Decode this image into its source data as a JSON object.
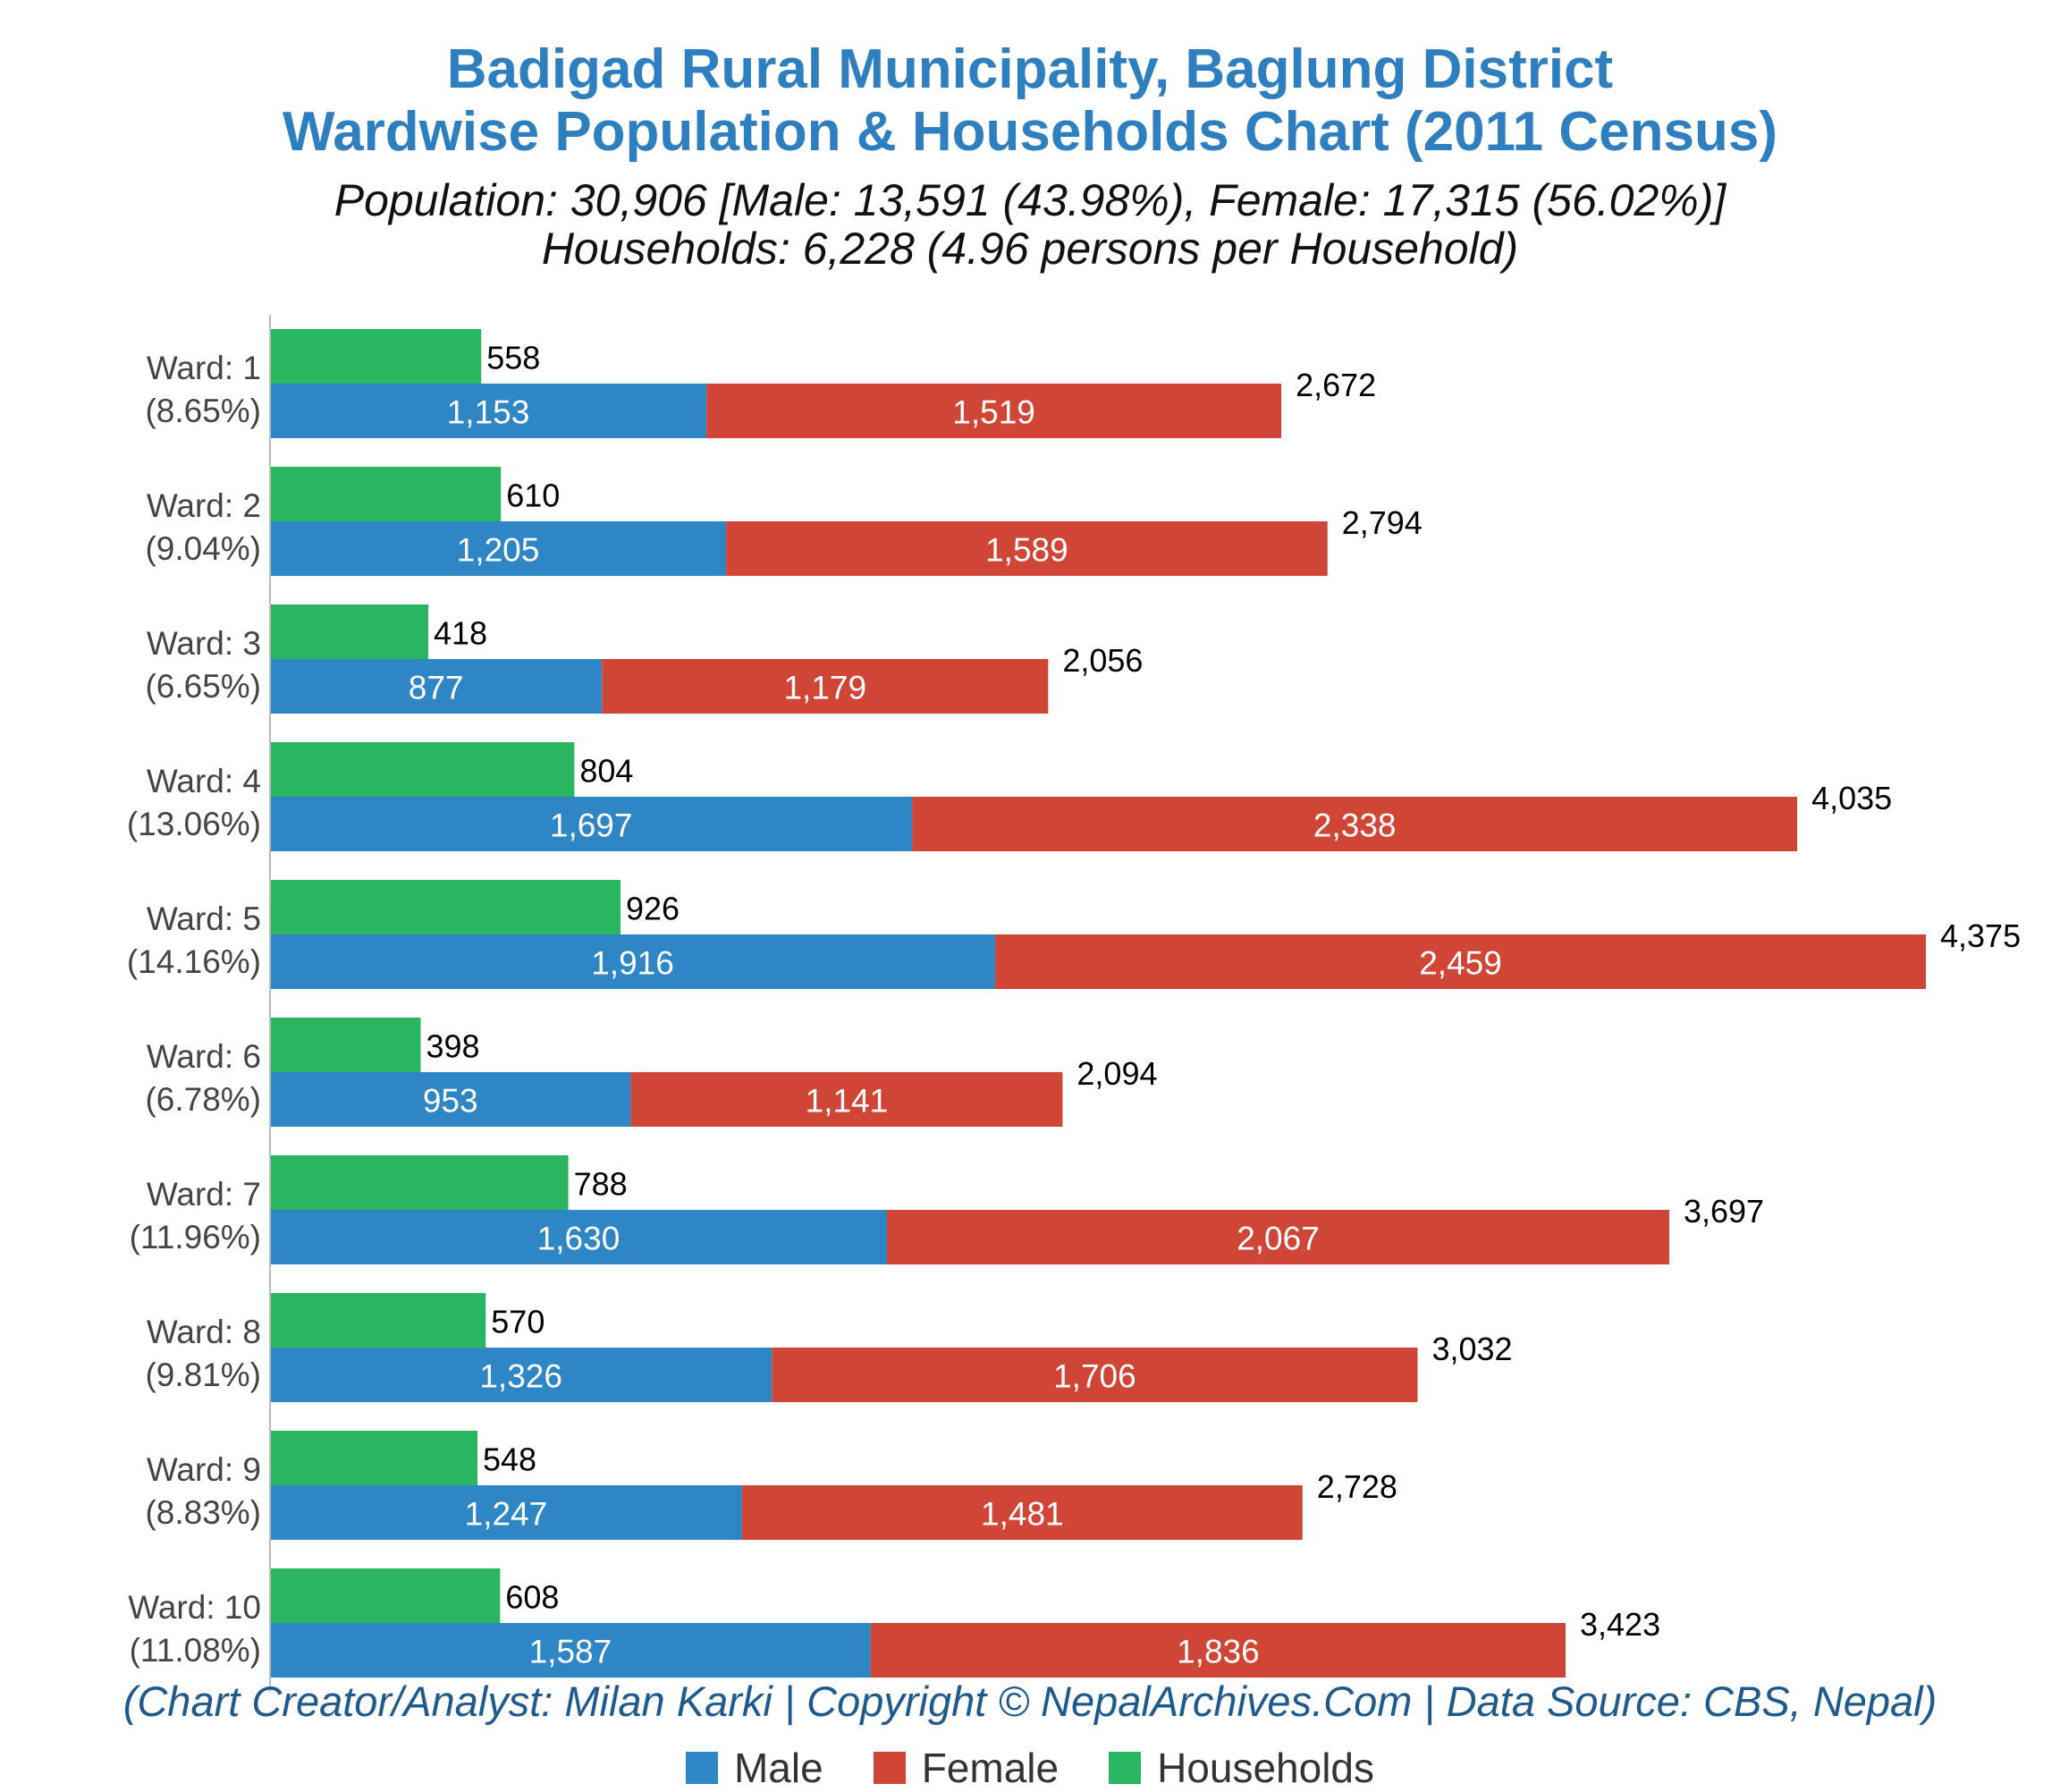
{
  "title_line1": "Badigad Rural Municipality, Baglung District",
  "title_line2": "Wardwise Population & Households Chart (2011 Census)",
  "subtitle_line1": "Population: 30,906 [Male: 13,591 (43.98%), Female: 17,315 (56.02%)]",
  "subtitle_line2": "Households: 6,228 (4.96 persons per Household)",
  "credit": "(Chart Creator/Analyst: Milan Karki | Copyright © NepalArchives.Com | Data Source: CBS, Nepal)",
  "legend": {
    "male": "Male",
    "female": "Female",
    "households": "Households"
  },
  "colors": {
    "male": "#2e86c4",
    "female": "#cf4636",
    "households": "#2ab561",
    "title": "#2e7fbf",
    "credit": "#1f5a8c"
  },
  "chart_data": {
    "type": "bar",
    "orientation": "horizontal",
    "stacked_series": [
      "Male",
      "Female"
    ],
    "categories": [
      "Ward: 1",
      "Ward: 2",
      "Ward: 3",
      "Ward: 4",
      "Ward: 5",
      "Ward: 6",
      "Ward: 7",
      "Ward: 8",
      "Ward: 9",
      "Ward: 10"
    ],
    "category_percent": [
      "(8.65%)",
      "(9.04%)",
      "(6.65%)",
      "(13.06%)",
      "(14.16%)",
      "(6.78%)",
      "(11.96%)",
      "(9.81%)",
      "(8.83%)",
      "(11.08%)"
    ],
    "series": [
      {
        "name": "Male",
        "values": [
          1153,
          1205,
          877,
          1697,
          1916,
          953,
          1630,
          1326,
          1247,
          1587
        ]
      },
      {
        "name": "Female",
        "values": [
          1519,
          1589,
          1179,
          2338,
          2459,
          1141,
          2067,
          1706,
          1481,
          1836
        ]
      },
      {
        "name": "Households",
        "values": [
          558,
          610,
          418,
          804,
          926,
          398,
          788,
          570,
          548,
          608
        ]
      }
    ],
    "totals": [
      2672,
      2794,
      2056,
      4035,
      4375,
      2094,
      3697,
      3032,
      2728,
      3423
    ],
    "xlim": [
      0,
      4375
    ],
    "grid": false,
    "legend_position": "bottom"
  }
}
